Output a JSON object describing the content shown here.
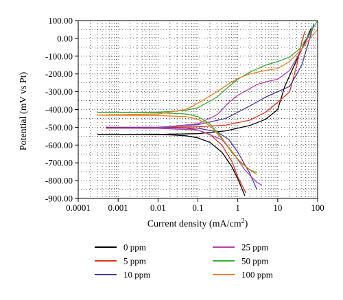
{
  "chart_data": {
    "type": "line",
    "xlabel": "Current density (mA/cm",
    "xlabel_sup": "2",
    "xlabel_end": ")",
    "ylabel": "Potential (mV vs Pt)",
    "x_scale": "log",
    "xlim": [
      0.0001,
      100
    ],
    "ylim": [
      -900,
      100
    ],
    "x_ticks": [
      "0.0001",
      "0.001",
      "0.01",
      "0.1",
      "1",
      "10",
      "100"
    ],
    "y_ticks": [
      "100.00",
      "0.00",
      "-100.00",
      "-200.00",
      "-300.00",
      "-400.00",
      "-500.00",
      "-600.00",
      "-700.00",
      "-800.00",
      "-900.00"
    ],
    "grid": "dotted",
    "legend_placement": "bottom",
    "series": [
      {
        "name": "0 ppm",
        "color": "#000000",
        "cathodic": [
          [
            0.0003,
            -541
          ],
          [
            0.003,
            -541
          ],
          [
            0.02,
            -543
          ],
          [
            0.05,
            -548
          ],
          [
            0.1,
            -560
          ],
          [
            0.2,
            -585
          ],
          [
            0.4,
            -640
          ],
          [
            0.7,
            -720
          ],
          [
            1.0,
            -790
          ],
          [
            1.5,
            -885
          ]
        ],
        "anodic": [
          [
            0.0003,
            -541
          ],
          [
            0.01,
            -540
          ],
          [
            0.1,
            -536
          ],
          [
            0.5,
            -520
          ],
          [
            2,
            -490
          ],
          [
            5,
            -455
          ],
          [
            10,
            -400
          ],
          [
            15,
            -270
          ],
          [
            25,
            -160
          ],
          [
            40,
            -60
          ],
          [
            70,
            60
          ]
        ]
      },
      {
        "name": "5 ppm",
        "color": "#e8301e",
        "cathodic": [
          [
            0.0005,
            -500
          ],
          [
            0.01,
            -501
          ],
          [
            0.05,
            -505
          ],
          [
            0.1,
            -515
          ],
          [
            0.2,
            -540
          ],
          [
            0.4,
            -600
          ],
          [
            0.7,
            -690
          ],
          [
            1.0,
            -780
          ],
          [
            1.6,
            -870
          ]
        ],
        "anodic": [
          [
            0.0005,
            -500
          ],
          [
            0.01,
            -500
          ],
          [
            0.1,
            -497
          ],
          [
            0.5,
            -488
          ],
          [
            2,
            -460
          ],
          [
            5,
            -415
          ],
          [
            10,
            -360
          ],
          [
            20,
            -300
          ],
          [
            30,
            -150
          ],
          [
            40,
            -20
          ],
          [
            48,
            40
          ]
        ]
      },
      {
        "name": "10 ppm",
        "color": "#4a35a0",
        "cathodic": [
          [
            0.0005,
            -502
          ],
          [
            0.01,
            -502
          ],
          [
            0.1,
            -505
          ],
          [
            0.3,
            -525
          ],
          [
            0.6,
            -570
          ],
          [
            1.0,
            -640
          ],
          [
            2,
            -760
          ],
          [
            3,
            -850
          ]
        ],
        "anodic": [
          [
            0.0005,
            -502
          ],
          [
            0.01,
            -500
          ],
          [
            0.1,
            -485
          ],
          [
            0.5,
            -450
          ],
          [
            2,
            -380
          ],
          [
            5,
            -330
          ],
          [
            10,
            -300
          ],
          [
            20,
            -270
          ],
          [
            40,
            -150
          ],
          [
            60,
            -20
          ],
          [
            80,
            80
          ]
        ]
      },
      {
        "name": "25 ppm",
        "color": "#b040a8",
        "cathodic": [
          [
            0.0005,
            -505
          ],
          [
            0.01,
            -506
          ],
          [
            0.1,
            -515
          ],
          [
            0.4,
            -570
          ],
          [
            0.8,
            -650
          ],
          [
            1.5,
            -740
          ],
          [
            3,
            -810
          ],
          [
            4,
            -825
          ]
        ],
        "anodic": [
          [
            0.0005,
            -505
          ],
          [
            0.01,
            -503
          ],
          [
            0.1,
            -480
          ],
          [
            0.3,
            -430
          ],
          [
            0.6,
            -360
          ],
          [
            1,
            -320
          ],
          [
            3,
            -260
          ],
          [
            6,
            -240
          ],
          [
            10,
            -230
          ],
          [
            20,
            -180
          ],
          [
            40,
            -60
          ],
          [
            70,
            40
          ]
        ]
      },
      {
        "name": "50 ppm",
        "color": "#3aaa3a",
        "cathodic": [
          [
            0.0003,
            -416
          ],
          [
            0.01,
            -418
          ],
          [
            0.05,
            -425
          ],
          [
            0.1,
            -440
          ],
          [
            0.2,
            -480
          ],
          [
            0.4,
            -560
          ],
          [
            0.7,
            -640
          ],
          [
            1.2,
            -700
          ],
          [
            2,
            -740
          ],
          [
            3,
            -755
          ]
        ],
        "anodic": [
          [
            0.0003,
            -416
          ],
          [
            0.01,
            -415
          ],
          [
            0.05,
            -405
          ],
          [
            0.1,
            -390
          ],
          [
            0.3,
            -330
          ],
          [
            0.6,
            -270
          ],
          [
            1,
            -230
          ],
          [
            2,
            -190
          ],
          [
            5,
            -150
          ],
          [
            10,
            -130
          ],
          [
            20,
            -105
          ],
          [
            35,
            -60
          ],
          [
            60,
            20
          ],
          [
            100,
            100
          ]
        ]
      },
      {
        "name": "100 ppm",
        "color": "#f07d1e",
        "cathodic": [
          [
            0.0003,
            -432
          ],
          [
            0.01,
            -434
          ],
          [
            0.05,
            -440
          ],
          [
            0.1,
            -455
          ],
          [
            0.2,
            -490
          ],
          [
            0.5,
            -590
          ],
          [
            1,
            -680
          ],
          [
            2,
            -740
          ],
          [
            3,
            -765
          ]
        ],
        "anodic": [
          [
            0.0003,
            -432
          ],
          [
            0.01,
            -425
          ],
          [
            0.05,
            -400
          ],
          [
            0.1,
            -365
          ],
          [
            0.3,
            -300
          ],
          [
            0.6,
            -255
          ],
          [
            1,
            -225
          ],
          [
            2,
            -200
          ],
          [
            5,
            -180
          ],
          [
            10,
            -170
          ],
          [
            20,
            -130
          ],
          [
            40,
            -60
          ],
          [
            70,
            10
          ],
          [
            100,
            50
          ]
        ]
      }
    ]
  }
}
